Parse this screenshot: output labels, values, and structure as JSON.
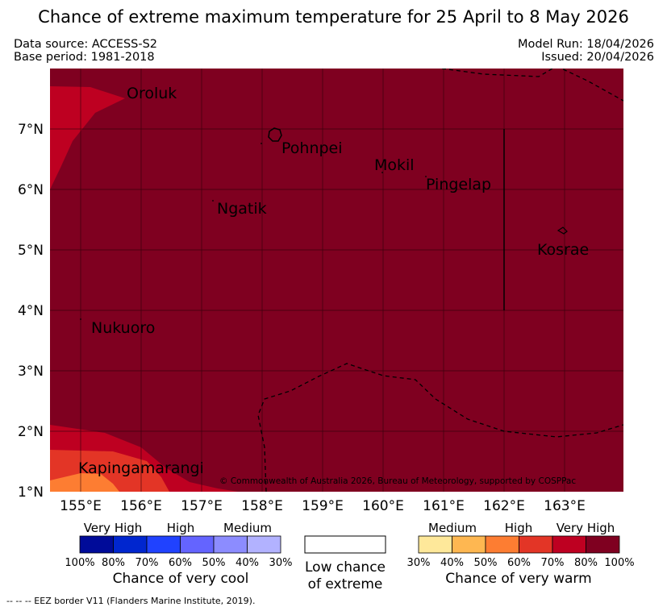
{
  "title": "Chance of extreme maximum temperature for 25 April to 8 May 2026",
  "header": {
    "data_source": "Data source: ACCESS-S2",
    "base_period": "Base period: 1981-2018",
    "model_run": "Model Run: 18/04/2026",
    "issued": "Issued: 20/04/2026"
  },
  "map": {
    "x_ticks": [
      "155°E",
      "156°E",
      "157°E",
      "158°E",
      "159°E",
      "160°E",
      "161°E",
      "162°E",
      "163°E"
    ],
    "y_ticks": [
      "7°N",
      "6°N",
      "5°N",
      "4°N",
      "3°N",
      "2°N",
      "1°N"
    ],
    "places": {
      "oroluk": "Oroluk",
      "pohnpei": "Pohnpei",
      "mokil": "Mokil",
      "pingelap": "Pingelap",
      "ngatik": "Ngatik",
      "kosrae": "Kosrae",
      "nukuoro": "Nukuoro",
      "kapingamarangi": "Kapingamarangi"
    },
    "copyright": "© Commonwealth of Australia 2026, Bureau of Meteorology, supported by COSPPac",
    "colors": {
      "warm_100": "#7f0020",
      "warm_80": "#be0021",
      "warm_70": "#e33526",
      "warm_60": "#fd7d32",
      "warm_50": "#feb751",
      "warm_40": "#fee89a"
    }
  },
  "legend": {
    "cool": {
      "labels": [
        "Very High",
        "High",
        "Medium"
      ],
      "ticks": [
        "100%",
        "80%",
        "70%",
        "60%",
        "50%",
        "40%",
        "30%"
      ],
      "title": "Chance of very cool",
      "colors": [
        "#000b99",
        "#0026cf",
        "#2042ff",
        "#6464ff",
        "#8c8cff",
        "#b2b2ff"
      ]
    },
    "low": {
      "line1": "Low chance",
      "line2": "of extreme"
    },
    "warm": {
      "labels": [
        "Medium",
        "High",
        "Very High"
      ],
      "ticks": [
        "30%",
        "40%",
        "50%",
        "60%",
        "70%",
        "80%",
        "100%"
      ],
      "title": "Chance of very warm",
      "colors": [
        "#fee89a",
        "#feb751",
        "#fd7d32",
        "#e33526",
        "#be0021",
        "#7f0020"
      ]
    }
  },
  "footer": {
    "eez_note": "--  --  -- EEZ border V11 (Flanders Marine Institute, 2019)."
  }
}
